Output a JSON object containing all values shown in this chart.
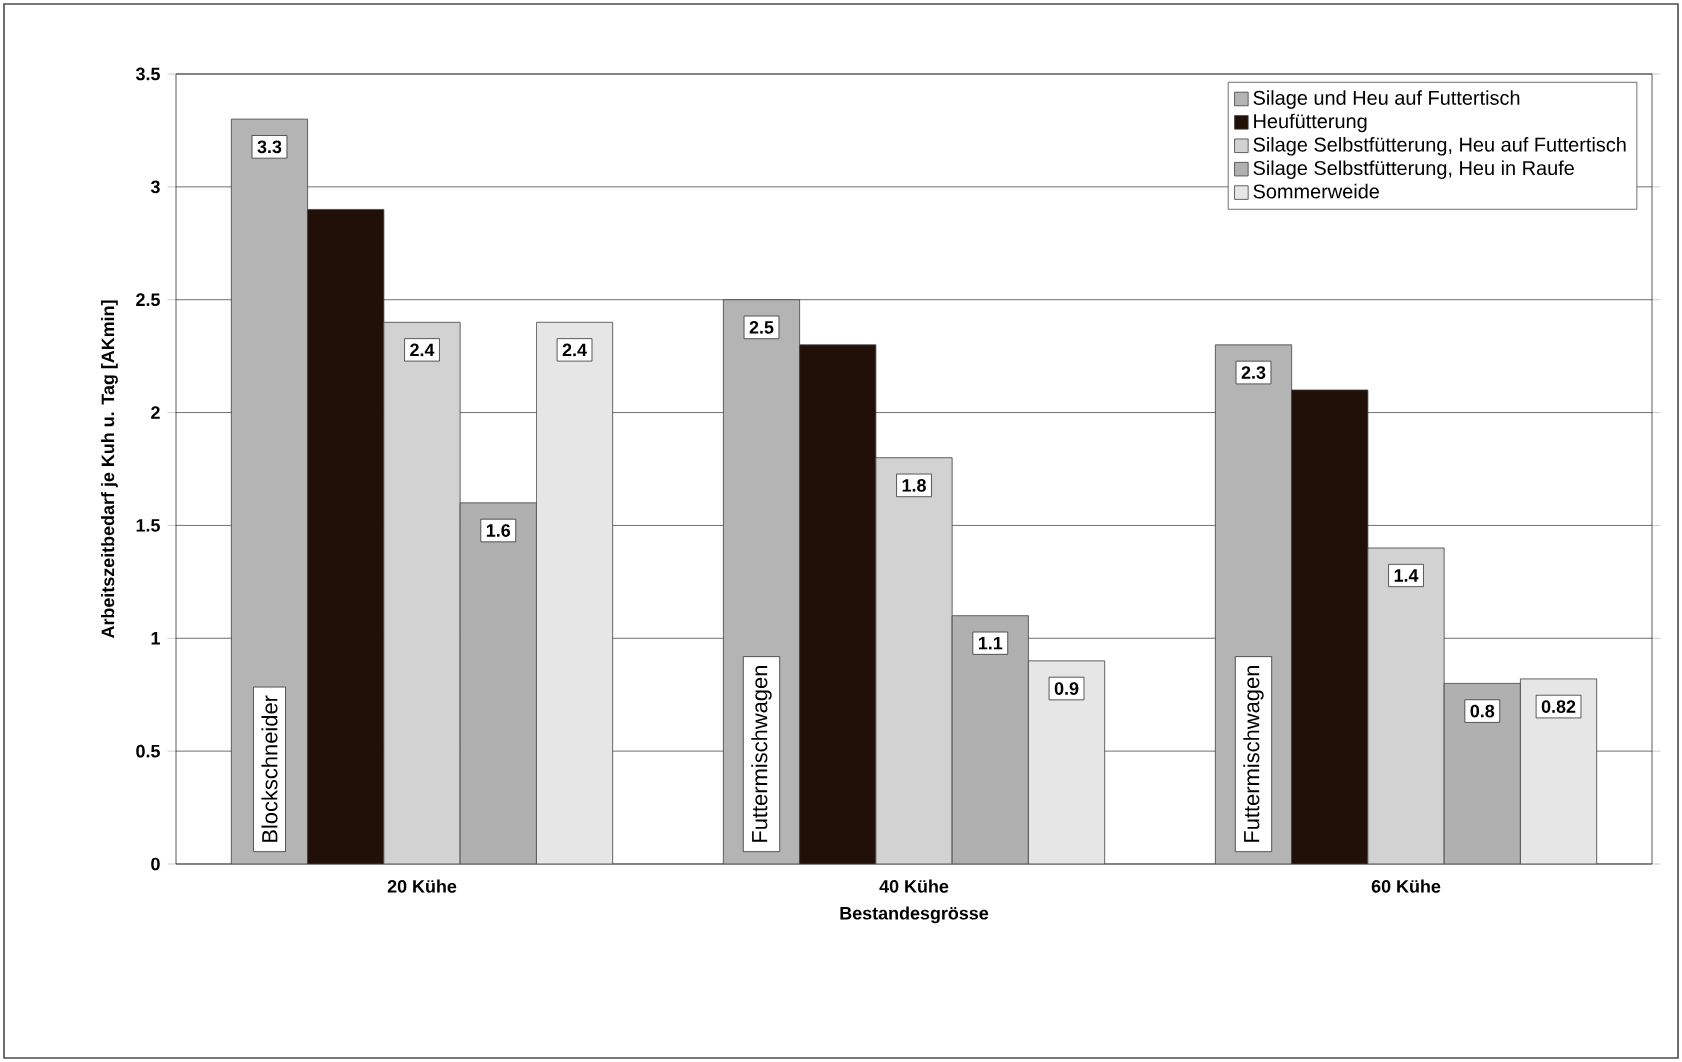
{
  "chart_data": {
    "type": "bar",
    "xlabel": "Bestandesgrösse",
    "ylabel": "Arbeitszeitbedarf je Kuh u. Tag [AKmin]",
    "categories": [
      "20 Kühe",
      "40 Kühe",
      "60 Kühe"
    ],
    "series": [
      {
        "name": "Silage und Heu auf Futtertisch",
        "color": "#b4b4b4",
        "values": [
          3.3,
          2.5,
          2.3
        ],
        "value_labels": [
          "3.3",
          "2.5",
          "2.3"
        ]
      },
      {
        "name": "Heufütterung",
        "color": "#201008",
        "values": [
          2.9,
          2.3,
          2.1
        ]
      },
      {
        "name": "Silage Selbstfütterung, Heu auf Futtertisch",
        "color": "#d2d2d2",
        "values": [
          2.4,
          1.8,
          1.4
        ],
        "value_labels": [
          "2.4",
          "1.8",
          "1.4"
        ]
      },
      {
        "name": "Silage Selbstfütterung, Heu in Raufe",
        "color": "#b0b0b0",
        "values": [
          1.6,
          1.1,
          0.8
        ],
        "value_labels": [
          "1.6",
          "1.1",
          "0.8"
        ]
      },
      {
        "name": "Sommerweide",
        "color": "#e6e6e6",
        "values": [
          2.4,
          0.9,
          0.82
        ],
        "value_labels": [
          "2.4",
          "0.9",
          "0.82"
        ]
      }
    ],
    "annotations": [
      "Blockschneider",
      "Futtermischwagen",
      "Futtermischwagen"
    ],
    "ylim": [
      0,
      3.5
    ],
    "yticks": [
      0,
      0.5,
      1,
      1.5,
      2,
      2.5,
      3,
      3.5
    ],
    "grid": "y",
    "legend": "top right"
  }
}
